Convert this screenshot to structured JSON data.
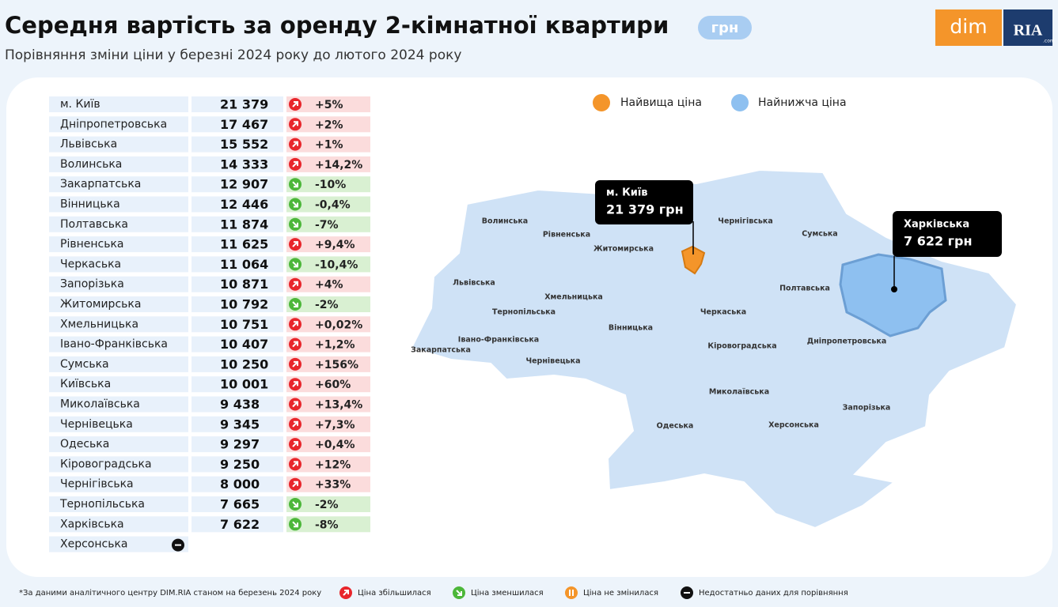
{
  "header": {
    "title": "Середня вартість за оренду 2-кімнатної квартири",
    "unit": "грн",
    "subtitle": "Порівняння зміни ціни у березні 2024 року до лютого 2024 року",
    "logo": {
      "left": "dim",
      "right": "RIA",
      "small": ".com"
    }
  },
  "table": {
    "rows": [
      {
        "region": "м. Київ",
        "price": "21 379",
        "change": "+5%",
        "trend": "up"
      },
      {
        "region": "Дніпропетровська",
        "price": "17 467",
        "change": "+2%",
        "trend": "up"
      },
      {
        "region": "Львівська",
        "price": "15 552",
        "change": "+1%",
        "trend": "up"
      },
      {
        "region": "Волинська",
        "price": "14 333",
        "change": "+14,2%",
        "trend": "up"
      },
      {
        "region": "Закарпатська",
        "price": "12 907",
        "change": "-10%",
        "trend": "down"
      },
      {
        "region": "Вінницька",
        "price": "12 446",
        "change": "-0,4%",
        "trend": "down"
      },
      {
        "region": "Полтавська",
        "price": "11 874",
        "change": "-7%",
        "trend": "down"
      },
      {
        "region": "Рівненська",
        "price": "11 625",
        "change": "+9,4%",
        "trend": "up"
      },
      {
        "region": "Черкаська",
        "price": "11 064",
        "change": "-10,4%",
        "trend": "down"
      },
      {
        "region": "Запорізька",
        "price": "10 871",
        "change": "+4%",
        "trend": "up"
      },
      {
        "region": "Житомирська",
        "price": "10 792",
        "change": "-2%",
        "trend": "down"
      },
      {
        "region": "Хмельницька",
        "price": "10 751",
        "change": "+0,02%",
        "trend": "up"
      },
      {
        "region": "Івано-Франківська",
        "price": "10 407",
        "change": "+1,2%",
        "trend": "up"
      },
      {
        "region": "Сумська",
        "price": "10 250",
        "change": "+156%",
        "trend": "up"
      },
      {
        "region": "Київська",
        "price": "10 001",
        "change": "+60%",
        "trend": "up"
      },
      {
        "region": "Миколаївська",
        "price": "9 438",
        "change": "+13,4%",
        "trend": "up"
      },
      {
        "region": "Чернівецька",
        "price": "9 345",
        "change": "+7,3%",
        "trend": "up"
      },
      {
        "region": "Одеська",
        "price": "9 297",
        "change": "+0,4%",
        "trend": "up"
      },
      {
        "region": "Кіровоградська",
        "price": "9 250",
        "change": "+12%",
        "trend": "up"
      },
      {
        "region": "Чернігівська",
        "price": "8 000",
        "change": "+33%",
        "trend": "up"
      },
      {
        "region": "Тернопільська",
        "price": "7 665",
        "change": "-2%",
        "trend": "down"
      },
      {
        "region": "Харківська",
        "price": "7 622",
        "change": "-8%",
        "trend": "down"
      },
      {
        "region": "Херсонська",
        "price": null,
        "change": null,
        "trend": "none"
      }
    ]
  },
  "map": {
    "legend": [
      "Найвища ціна",
      "Найнижча ціна"
    ],
    "callouts": [
      {
        "name": "м. Київ",
        "price": "21 379 грн"
      },
      {
        "name": "Харківська",
        "price": "7 622 грн"
      }
    ],
    "regions": [
      "Волинська",
      "Рівненська",
      "Житомирська",
      "Чернігівська",
      "Сумська",
      "Львівська",
      "Хмельницька",
      "Тернопільська",
      "Полтавська",
      "Черкаська",
      "Вінницька",
      "Івано-Франківська",
      "Закарпатська",
      "Кіровоградська",
      "Дніпропетровська",
      "Чернівецька",
      "Миколаївська",
      "Одеська",
      "Херсонська",
      "Запорізька"
    ]
  },
  "footer": {
    "note": "*За даними аналітичного центру DIM.RIA станом на березень 2024 року",
    "legend": [
      "Ціна збільшилася",
      "Ціна зменшилася",
      "Ціна не змінилася",
      "Недостатньо даних для порівняння"
    ]
  }
}
